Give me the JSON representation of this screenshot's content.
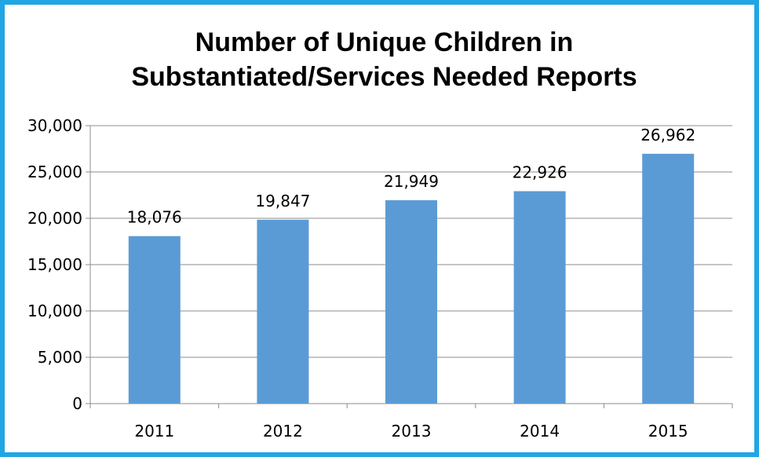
{
  "chart_data": {
    "type": "bar",
    "title_lines": [
      "Number of Unique Children in",
      "Substantiated/Services Needed Reports"
    ],
    "categories": [
      "2011",
      "2012",
      "2013",
      "2014",
      "2015"
    ],
    "values": [
      18076,
      19847,
      21949,
      22926,
      26962
    ],
    "data_labels": [
      "18,076",
      "19,847",
      "21,949",
      "22,926",
      "26,962"
    ],
    "y_ticks": [
      0,
      5000,
      10000,
      15000,
      20000,
      25000,
      30000
    ],
    "y_tick_labels": [
      "0",
      "5,000",
      "10,000",
      "15,000",
      "20,000",
      "25,000",
      "30,000"
    ],
    "ylim": [
      0,
      30000
    ],
    "grid": true,
    "legend": "none",
    "bar_color": "#5b9bd5",
    "frame_color": "#1fa6e3"
  }
}
